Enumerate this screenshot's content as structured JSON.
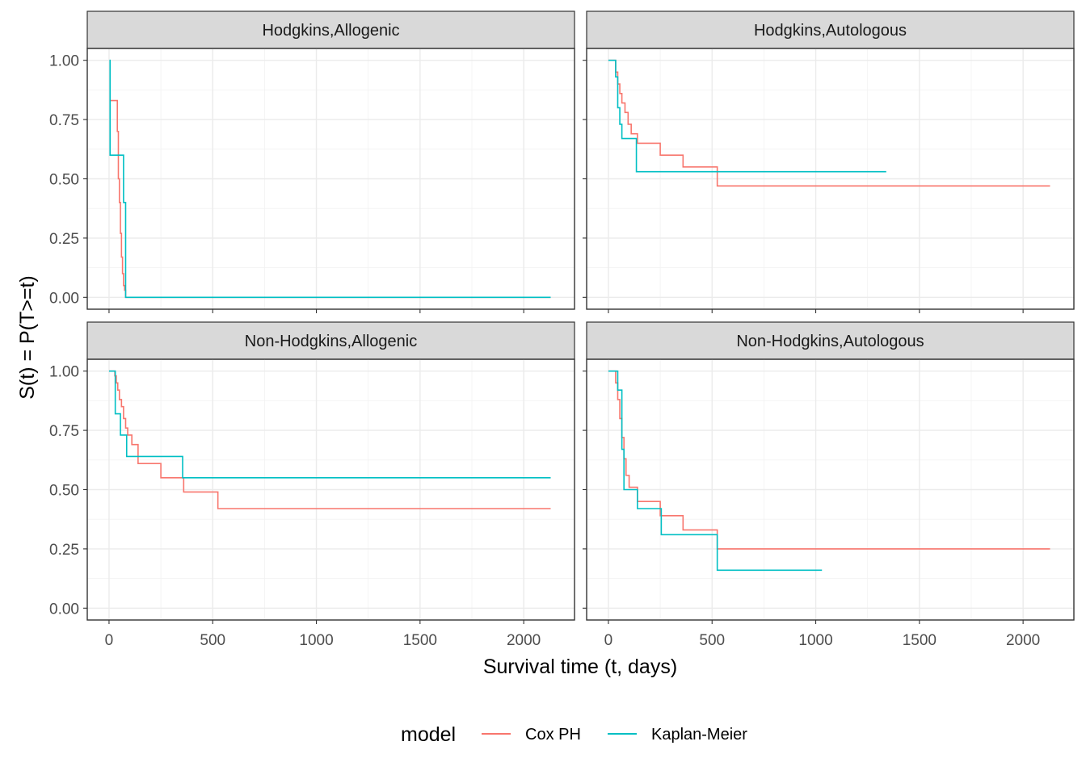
{
  "chart_data": {
    "type": "line",
    "step": true,
    "facet_layout": "2x2",
    "xlabel": "Survival time (t, days)",
    "ylabel": "S(t) = P(T>=t)",
    "xlim": [
      -105,
      2245
    ],
    "ylim": [
      -0.05,
      1.05
    ],
    "x_ticks": [
      0,
      500,
      1000,
      1500,
      2000
    ],
    "x_tick_labels": [
      "0",
      "500",
      "1000",
      "1500",
      "2000"
    ],
    "y_ticks": [
      0,
      0.25,
      0.5,
      0.75,
      1.0
    ],
    "y_tick_labels": [
      "0.00",
      "0.25",
      "0.50",
      "0.75",
      "1.00"
    ],
    "grid": true,
    "legend": {
      "title": "model",
      "position": "bottom",
      "entries": [
        {
          "name": "Cox PH",
          "color": "#F8766D"
        },
        {
          "name": "Kaplan-Meier",
          "color": "#00BFC4"
        }
      ]
    },
    "panels": [
      {
        "label": "Hodgkins,Allogenic",
        "series": [
          {
            "name": "Cox PH",
            "color": "#F8766D",
            "x": [
              5,
              20,
              40,
              45,
              50,
              55,
              60,
              65,
              70,
              75,
              80,
              2130
            ],
            "y": [
              0.83,
              0.83,
              0.7,
              0.5,
              0.4,
              0.27,
              0.17,
              0.1,
              0.05,
              0.03,
              0.0,
              0.0
            ]
          },
          {
            "name": "Kaplan-Meier",
            "color": "#00BFC4",
            "x": [
              2,
              5,
              70,
              80,
              2130
            ],
            "y": [
              1.0,
              0.6,
              0.4,
              0.0,
              0.0
            ]
          }
        ]
      },
      {
        "label": "Hodgkins,Autologous",
        "series": [
          {
            "name": "Cox PH",
            "color": "#F8766D",
            "x": [
              0,
              35,
              45,
              55,
              65,
              80,
              95,
              110,
              140,
              250,
              360,
              525,
              2130
            ],
            "y": [
              1.0,
              0.95,
              0.9,
              0.86,
              0.82,
              0.78,
              0.73,
              0.69,
              0.65,
              0.6,
              0.55,
              0.47,
              0.47
            ]
          },
          {
            "name": "Kaplan-Meier",
            "color": "#00BFC4",
            "x": [
              0,
              35,
              45,
              55,
              65,
              135,
              1340
            ],
            "y": [
              1.0,
              0.93,
              0.8,
              0.73,
              0.67,
              0.53,
              0.53
            ]
          }
        ]
      },
      {
        "label": "Non-Hodgkins,Allogenic",
        "series": [
          {
            "name": "Cox PH",
            "color": "#F8766D",
            "x": [
              0,
              28,
              35,
              42,
              50,
              60,
              70,
              80,
              90,
              110,
              140,
              250,
              360,
              525,
              2130
            ],
            "y": [
              1.0,
              0.98,
              0.95,
              0.92,
              0.88,
              0.85,
              0.8,
              0.76,
              0.73,
              0.69,
              0.61,
              0.55,
              0.49,
              0.42,
              0.42
            ]
          },
          {
            "name": "Kaplan-Meier",
            "color": "#00BFC4",
            "x": [
              0,
              30,
              55,
              85,
              355,
              2130
            ],
            "y": [
              1.0,
              0.82,
              0.73,
              0.64,
              0.55,
              0.55
            ]
          }
        ]
      },
      {
        "label": "Non-Hodgkins,Autologous",
        "series": [
          {
            "name": "Cox PH",
            "color": "#F8766D",
            "x": [
              0,
              35,
              45,
              55,
              65,
              75,
              85,
              100,
              140,
              250,
              360,
              525,
              2130
            ],
            "y": [
              1.0,
              0.95,
              0.88,
              0.8,
              0.72,
              0.63,
              0.56,
              0.51,
              0.45,
              0.39,
              0.33,
              0.25,
              0.25
            ]
          },
          {
            "name": "Kaplan-Meier",
            "color": "#00BFC4",
            "x": [
              0,
              45,
              65,
              75,
              140,
              255,
              525,
              1030
            ],
            "y": [
              1.0,
              0.92,
              0.67,
              0.5,
              0.42,
              0.31,
              0.16,
              0.16
            ]
          }
        ]
      }
    ]
  }
}
